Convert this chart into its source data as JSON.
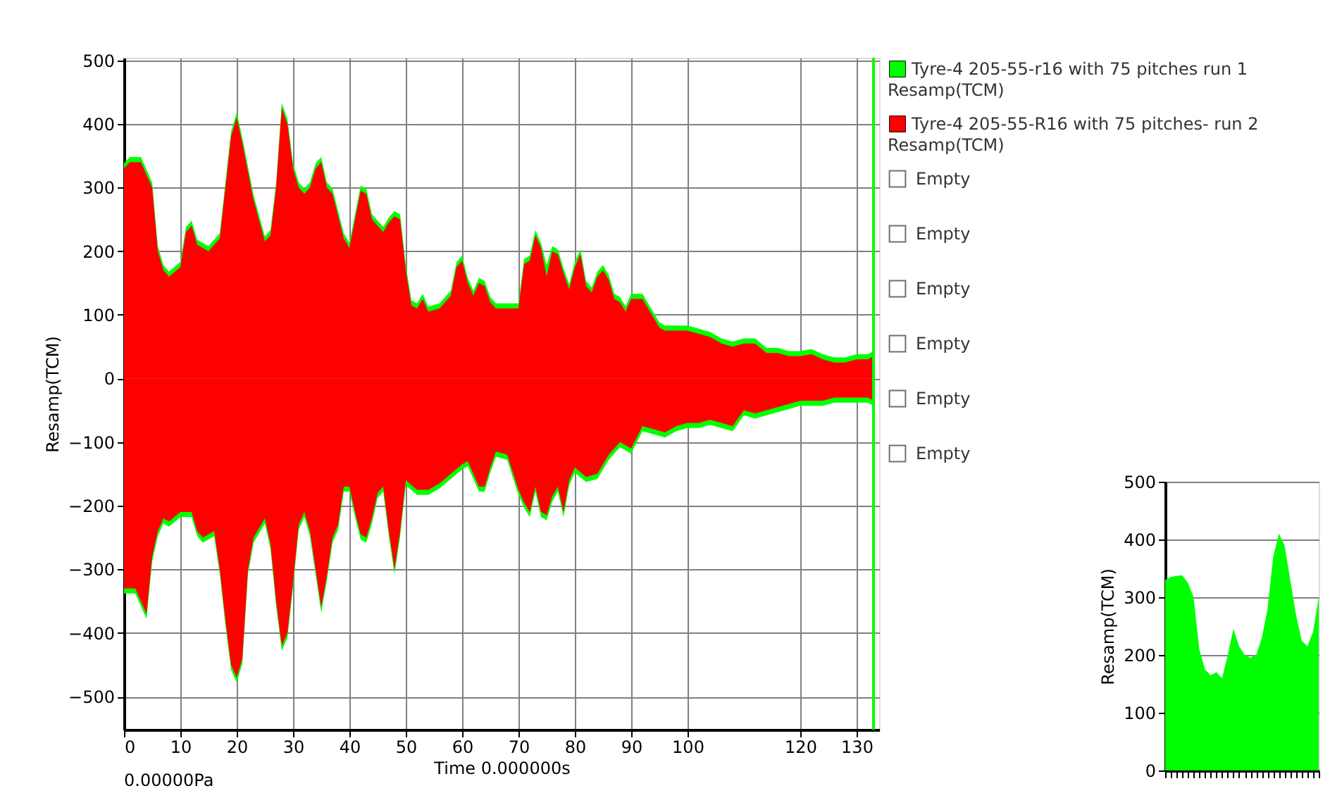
{
  "chart_data": [
    {
      "type": "area",
      "xlabel": "Time 0.000000s",
      "ylabel": "Resamp(TCM)",
      "xlim": [
        0,
        134
      ],
      "xticks": [
        0,
        10,
        20,
        30,
        40,
        50,
        60,
        70,
        80,
        90,
        100,
        120,
        130
      ],
      "ylim": [
        -552,
        504
      ],
      "yticks": [
        -500,
        -400,
        -300,
        -200,
        -100,
        0,
        100,
        200,
        300,
        400,
        500
      ],
      "grid": true,
      "legend": "right",
      "annotations": [
        "0.00000Pa",
        "Empty",
        "Empty",
        "Empty",
        "Empty",
        "Empty",
        "Empty"
      ],
      "ref_lines": [
        {
          "axis": "x",
          "value": 133,
          "color": "#00ff00"
        }
      ],
      "series": [
        {
          "name": "Tyre-4  205-55-r16 with 75 pitches run 1 Resamp(TCM)",
          "color": "#00ff00",
          "x": [
            0,
            1,
            3,
            4,
            5,
            6,
            7,
            8,
            10,
            11,
            12,
            13,
            15,
            17,
            18,
            19,
            20,
            21,
            23,
            25,
            26,
            27,
            28,
            29,
            30,
            31,
            32,
            33,
            34,
            35,
            36,
            37,
            39,
            40,
            41,
            42,
            43,
            44,
            45,
            46,
            47,
            48,
            49,
            50,
            51,
            52,
            53,
            54,
            56,
            58,
            59,
            60,
            61,
            62,
            63,
            64,
            65,
            66,
            68,
            70,
            71,
            72,
            73,
            74,
            75,
            76,
            77,
            78,
            79,
            80,
            81,
            82,
            83,
            84,
            85,
            86,
            87,
            88,
            89,
            90,
            92,
            94,
            95,
            96,
            98,
            100,
            102,
            104,
            106,
            108,
            110,
            112,
            114,
            116,
            118,
            120,
            122,
            124,
            126,
            128,
            130,
            132,
            133
          ],
          "values": [
            338,
            348,
            348,
            328,
            308,
            208,
            178,
            168,
            183,
            238,
            248,
            218,
            208,
            228,
            308,
            388,
            418,
            378,
            288,
            223,
            233,
            308,
            433,
            408,
            338,
            308,
            298,
            308,
            338,
            348,
            308,
            298,
            228,
            213,
            258,
            303,
            298,
            258,
            248,
            238,
            253,
            263,
            258,
            178,
            123,
            118,
            133,
            113,
            118,
            138,
            183,
            193,
            158,
            138,
            158,
            153,
            128,
            118,
            118,
            118,
            188,
            193,
            233,
            213,
            178,
            208,
            203,
            173,
            148,
            183,
            203,
            153,
            143,
            168,
            178,
            163,
            133,
            128,
            113,
            133,
            133,
            103,
            88,
            83,
            83,
            83,
            78,
            73,
            63,
            58,
            63,
            63,
            48,
            48,
            43,
            43,
            46,
            38,
            33,
            33,
            38,
            38,
            43
          ]
        },
        {
          "color": "#00ff00",
          "x": [
            0,
            2,
            3,
            4,
            5,
            6,
            7,
            8,
            10,
            12,
            13,
            14,
            16,
            17,
            18,
            19,
            20,
            21,
            22,
            23,
            25,
            26,
            27,
            28,
            29,
            30,
            31,
            32,
            33,
            34,
            35,
            36,
            37,
            38,
            39,
            40,
            41,
            42,
            43,
            44,
            45,
            46,
            47,
            48,
            49,
            50,
            52,
            54,
            56,
            58,
            60,
            61,
            62,
            63,
            64,
            65,
            66,
            68,
            70,
            71,
            72,
            73,
            74,
            75,
            76,
            77,
            78,
            79,
            80,
            82,
            84,
            86,
            88,
            90,
            92,
            94,
            96,
            98,
            100,
            102,
            104,
            106,
            108,
            110,
            112,
            114,
            116,
            118,
            120,
            122,
            124,
            126,
            128,
            130,
            132,
            133
          ],
          "values": [
            -338,
            -338,
            -358,
            -378,
            -288,
            -248,
            -228,
            -233,
            -218,
            -218,
            -248,
            -258,
            -248,
            -308,
            -388,
            -458,
            -478,
            -448,
            -308,
            -258,
            -228,
            -268,
            -358,
            -428,
            -408,
            -328,
            -238,
            -218,
            -248,
            -308,
            -368,
            -318,
            -258,
            -238,
            -178,
            -178,
            -218,
            -253,
            -258,
            -228,
            -188,
            -178,
            -248,
            -308,
            -248,
            -168,
            -183,
            -183,
            -173,
            -158,
            -143,
            -138,
            -158,
            -178,
            -178,
            -148,
            -123,
            -128,
            -183,
            -203,
            -218,
            -178,
            -218,
            -223,
            -193,
            -178,
            -218,
            -168,
            -148,
            -163,
            -158,
            -128,
            -108,
            -118,
            -83,
            -88,
            -93,
            -83,
            -78,
            -78,
            -73,
            -78,
            -83,
            -58,
            -63,
            -58,
            -53,
            -48,
            -43,
            -43,
            -43,
            -38,
            -38,
            -38,
            -38,
            -43
          ]
        },
        {
          "name": "Tyre-4 205-55-R16 with 75 pitches- run 2 Resamp(TCM)",
          "color": "#ff0000",
          "x": [
            0,
            1,
            3,
            4,
            5,
            6,
            7,
            8,
            10,
            11,
            12,
            13,
            15,
            17,
            18,
            19,
            20,
            21,
            23,
            25,
            26,
            27,
            28,
            29,
            30,
            31,
            32,
            33,
            34,
            35,
            36,
            37,
            39,
            40,
            41,
            42,
            43,
            44,
            45,
            46,
            47,
            48,
            49,
            50,
            51,
            52,
            53,
            54,
            56,
            58,
            59,
            60,
            61,
            62,
            63,
            64,
            65,
            66,
            68,
            70,
            71,
            72,
            73,
            74,
            75,
            76,
            77,
            78,
            79,
            80,
            81,
            82,
            83,
            84,
            85,
            86,
            87,
            88,
            89,
            90,
            92,
            94,
            95,
            96,
            98,
            100,
            102,
            104,
            106,
            108,
            110,
            112,
            114,
            116,
            118,
            120,
            122,
            124,
            126,
            128,
            130,
            132,
            133
          ],
          "values": [
            330,
            340,
            340,
            320,
            300,
            200,
            170,
            160,
            175,
            230,
            240,
            210,
            200,
            220,
            300,
            380,
            410,
            370,
            280,
            215,
            225,
            300,
            425,
            400,
            330,
            300,
            290,
            300,
            330,
            340,
            300,
            290,
            220,
            205,
            250,
            295,
            290,
            250,
            240,
            230,
            245,
            255,
            250,
            170,
            115,
            110,
            125,
            105,
            110,
            130,
            175,
            185,
            150,
            130,
            150,
            145,
            120,
            110,
            110,
            110,
            180,
            185,
            225,
            205,
            160,
            200,
            195,
            165,
            140,
            175,
            195,
            145,
            135,
            160,
            170,
            155,
            125,
            120,
            105,
            125,
            125,
            95,
            80,
            75,
            75,
            75,
            70,
            65,
            55,
            50,
            55,
            55,
            40,
            40,
            35,
            35,
            38,
            30,
            25,
            25,
            30,
            30,
            35
          ]
        },
        {
          "color": "#ff0000",
          "x": [
            0,
            2,
            3,
            4,
            5,
            6,
            7,
            8,
            10,
            12,
            13,
            14,
            16,
            17,
            18,
            19,
            20,
            21,
            22,
            23,
            25,
            26,
            27,
            28,
            29,
            30,
            31,
            32,
            33,
            34,
            35,
            36,
            37,
            38,
            39,
            40,
            41,
            42,
            43,
            44,
            45,
            46,
            47,
            48,
            49,
            50,
            52,
            54,
            56,
            58,
            60,
            61,
            62,
            63,
            64,
            65,
            66,
            68,
            70,
            71,
            72,
            73,
            74,
            75,
            76,
            77,
            78,
            79,
            80,
            82,
            84,
            86,
            88,
            90,
            92,
            94,
            96,
            98,
            100,
            102,
            104,
            106,
            108,
            110,
            112,
            114,
            116,
            118,
            120,
            122,
            124,
            126,
            128,
            130,
            132,
            133
          ],
          "values": [
            -330,
            -330,
            -350,
            -370,
            -280,
            -240,
            -220,
            -225,
            -210,
            -210,
            -240,
            -250,
            -240,
            -300,
            -380,
            -450,
            -470,
            -440,
            -300,
            -250,
            -220,
            -260,
            -350,
            -420,
            -400,
            -320,
            -230,
            -210,
            -240,
            -300,
            -360,
            -310,
            -250,
            -230,
            -170,
            -170,
            -210,
            -245,
            -250,
            -220,
            -180,
            -170,
            -240,
            -300,
            -240,
            -160,
            -175,
            -175,
            -165,
            -150,
            -135,
            -130,
            -150,
            -170,
            -170,
            -140,
            -115,
            -120,
            -175,
            -195,
            -210,
            -170,
            -210,
            -215,
            -185,
            -170,
            -210,
            -160,
            -140,
            -155,
            -150,
            -120,
            -100,
            -110,
            -75,
            -80,
            -85,
            -75,
            -70,
            -70,
            -65,
            -70,
            -75,
            -50,
            -55,
            -50,
            -45,
            -40,
            -35,
            -35,
            -35,
            -30,
            -30,
            -30,
            -30,
            -35
          ]
        }
      ]
    },
    {
      "type": "area",
      "ylabel": "Resamp(TCM)",
      "categories": [
        null,
        null,
        null,
        null,
        null,
        null,
        null,
        null,
        null,
        null,
        null,
        null,
        null,
        null,
        null,
        null,
        null,
        null,
        null,
        null,
        null,
        null,
        null,
        null,
        null,
        null,
        null,
        null
      ],
      "ylim": [
        0,
        500
      ],
      "yticks": [
        0,
        100,
        200,
        300,
        400,
        500
      ],
      "grid": true,
      "tick_labels": "y",
      "series": [
        {
          "color": "#00ff00",
          "values": [
            330,
            335,
            337,
            338,
            325,
            300,
            210,
            175,
            165,
            170,
            160,
            200,
            245,
            215,
            200,
            195,
            200,
            230,
            280,
            370,
            410,
            390,
            330,
            270,
            225,
            215,
            240,
            300
          ]
        }
      ]
    }
  ]
}
